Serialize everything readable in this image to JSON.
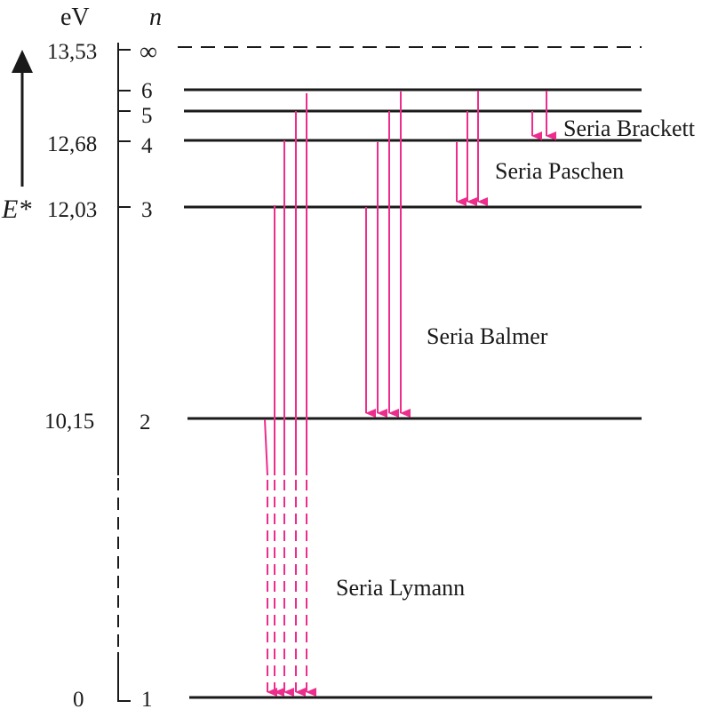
{
  "header": {
    "unit": "eV",
    "quantum": "n",
    "axis_symbol": "E*"
  },
  "infinity_symbol": "∞",
  "energy_labels": [
    "13,53",
    "12,68",
    "12,03",
    "10,15",
    "0"
  ],
  "n_labels": [
    "6",
    "5",
    "4",
    "3",
    "2",
    "1"
  ],
  "series": [
    {
      "label": "Seria Lymann"
    },
    {
      "label": "Seria Balmer"
    },
    {
      "label": "Seria Paschen"
    },
    {
      "label": "Seria Brackett"
    }
  ],
  "colors": {
    "line": "#1a1a1a",
    "arrow": "#ee2c8c"
  }
}
